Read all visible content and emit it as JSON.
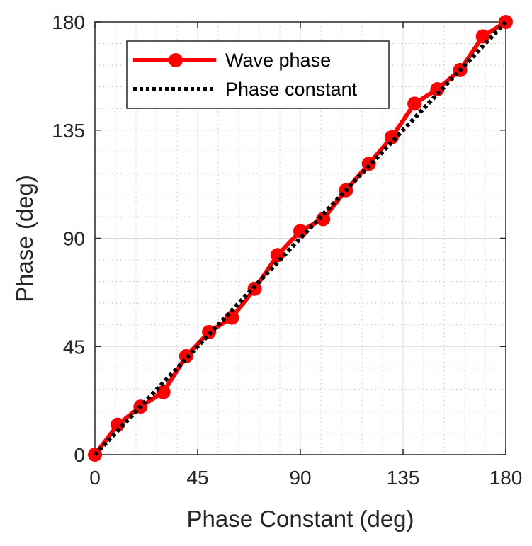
{
  "chart_data": {
    "type": "line",
    "title": "",
    "xlabel": "Phase Constant (deg)",
    "ylabel": "Phase (deg)",
    "xlim": [
      0,
      180
    ],
    "ylim": [
      0,
      180
    ],
    "xticks": [
      0,
      45,
      90,
      135,
      180
    ],
    "yticks": [
      0,
      45,
      90,
      135,
      180
    ],
    "xtick_labels": [
      "0",
      "45",
      "90",
      "135",
      "180"
    ],
    "ytick_labels": [
      "0",
      "45",
      "90",
      "135",
      "180"
    ],
    "grid": true,
    "minor_grid": true,
    "legend_position": "top-left",
    "series": [
      {
        "name": "Wave phase",
        "color": "#ff0000",
        "style": "solid-marker",
        "x": [
          0,
          10,
          20,
          30,
          40,
          50,
          60,
          70,
          80,
          90,
          100,
          110,
          120,
          130,
          140,
          150,
          160,
          170,
          180
        ],
        "values": [
          0,
          12.5,
          20,
          26,
          41,
          51,
          57,
          69,
          83,
          93,
          98,
          110,
          121,
          132,
          146,
          152,
          160,
          174,
          180
        ]
      },
      {
        "name": "Phase constant",
        "color": "#000000",
        "style": "dotted",
        "x": [
          0,
          180
        ],
        "values": [
          0,
          180
        ]
      }
    ]
  }
}
